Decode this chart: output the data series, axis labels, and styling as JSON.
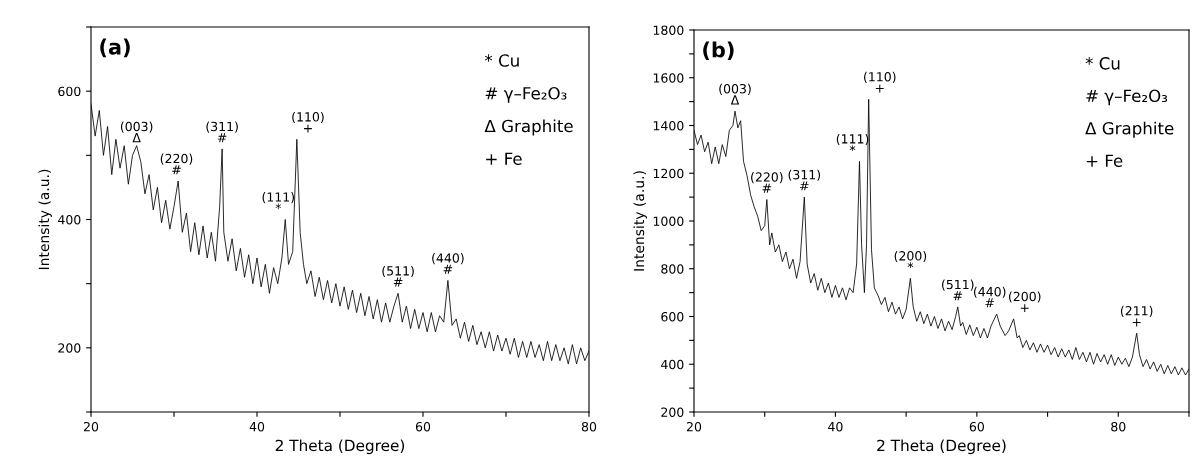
{
  "chart_data": [
    {
      "type": "line",
      "title": "(a)",
      "xlabel": "2 Theta (Degree)",
      "ylabel": "Intensity (a.u.)",
      "xlim": [
        20,
        80
      ],
      "ylim": [
        100,
        700
      ],
      "xticks": [
        20,
        {
          "value": 30,
          "label": null
        },
        40,
        {
          "value": 50,
          "label": null
        },
        60,
        {
          "value": 70,
          "label": null
        },
        80
      ],
      "yticks": [
        {
          "value": 100,
          "label": null
        },
        200,
        {
          "value": 300,
          "label": null
        },
        400,
        {
          "value": 500,
          "label": null
        },
        600,
        {
          "value": 700,
          "label": null
        }
      ],
      "grid": false,
      "legend": false,
      "marker": "none",
      "line_style": "solid",
      "series": [
        {
          "color": "#000000",
          "x": [
            20,
            20.5,
            21,
            21.5,
            22,
            22.5,
            23,
            23.5,
            24,
            24.5,
            25,
            25.5,
            26,
            26.5,
            27,
            27.5,
            28,
            28.5,
            29,
            29.5,
            30,
            30.5,
            31,
            31.5,
            32,
            32.5,
            33,
            33.5,
            34,
            34.5,
            35,
            35.5,
            35.8,
            36,
            36.5,
            37,
            37.5,
            38,
            38.5,
            39,
            39.5,
            40,
            40.5,
            41,
            41.5,
            42,
            42.5,
            43,
            43.4,
            43.8,
            44.3,
            44.8,
            45.2,
            45.6,
            46,
            46.5,
            47,
            47.5,
            48,
            48.5,
            49,
            49.5,
            50,
            50.5,
            51,
            51.5,
            52,
            52.5,
            53,
            53.5,
            54,
            54.5,
            55,
            55.5,
            56,
            56.5,
            57,
            57.5,
            58,
            58.5,
            59,
            59.5,
            60,
            60.5,
            61,
            61.5,
            62,
            62.5,
            63,
            63.5,
            64,
            64.5,
            65,
            65.5,
            66,
            66.5,
            67,
            67.5,
            68,
            68.5,
            69,
            69.5,
            70,
            70.5,
            71,
            71.5,
            72,
            72.5,
            73,
            73.5,
            74,
            74.5,
            75,
            75.5,
            76,
            76.5,
            77,
            77.5,
            78,
            78.5,
            79,
            79.5,
            80
          ],
          "values": [
            580,
            530,
            570,
            500,
            545,
            470,
            525,
            480,
            515,
            455,
            500,
            515,
            490,
            440,
            470,
            415,
            450,
            395,
            430,
            385,
            420,
            460,
            380,
            410,
            350,
            395,
            345,
            390,
            340,
            380,
            335,
            420,
            510,
            380,
            335,
            370,
            320,
            355,
            310,
            345,
            300,
            340,
            295,
            330,
            285,
            325,
            300,
            340,
            400,
            330,
            350,
            525,
            380,
            330,
            300,
            320,
            280,
            310,
            275,
            305,
            270,
            300,
            265,
            295,
            260,
            290,
            255,
            285,
            250,
            280,
            245,
            275,
            240,
            270,
            240,
            265,
            285,
            240,
            265,
            230,
            260,
            230,
            255,
            225,
            255,
            225,
            250,
            240,
            305,
            235,
            245,
            215,
            240,
            210,
            235,
            205,
            225,
            200,
            225,
            195,
            220,
            195,
            215,
            190,
            215,
            185,
            210,
            185,
            210,
            185,
            205,
            180,
            210,
            180,
            205,
            180,
            200,
            175,
            205,
            175,
            200,
            180,
            195
          ]
        }
      ],
      "annotations": [
        "* Cu",
        "# γ–Fe₂O₃",
        "Δ Graphite",
        "+ Fe",
        {
          "text": "(003)\nΔ",
          "x": 25.5,
          "y": 510
        },
        {
          "text": "(220)\n#",
          "x": 30.3,
          "y": 460
        },
        {
          "text": "(311)\n#",
          "x": 35.8,
          "y": 510
        },
        {
          "text": "(111)\n*",
          "x": 43.4,
          "y": 400
        },
        {
          "text": "(110)\n+",
          "x": 44.8,
          "y": 525
        },
        {
          "text": "(511)\n#",
          "x": 57,
          "y": 285
        },
        {
          "text": "(440)\n#",
          "x": 63,
          "y": 305
        }
      ]
    },
    {
      "type": "line",
      "title": "(b)",
      "xlabel": "2 Theta (Degree)",
      "ylabel": "Intensity (a.u.)",
      "xlim": [
        20,
        90
      ],
      "ylim": [
        200,
        1800
      ],
      "xticks": [
        20,
        {
          "value": 30,
          "label": null
        },
        40,
        {
          "value": 50,
          "label": null
        },
        60,
        {
          "value": 70,
          "label": null
        },
        80,
        {
          "value": 90,
          "label": null
        }
      ],
      "yticks": [
        200,
        {
          "value": 300,
          "label": null
        },
        400,
        {
          "value": 500,
          "label": null
        },
        600,
        {
          "value": 700,
          "label": null
        },
        800,
        {
          "value": 900,
          "label": null
        },
        1000,
        {
          "value": 1100,
          "label": null
        },
        1200,
        {
          "value": 1300,
          "label": null
        },
        1400,
        {
          "value": 1500,
          "label": null
        },
        1600,
        {
          "value": 1700,
          "label": null
        },
        1800
      ],
      "grid": false,
      "legend": false,
      "marker": "none",
      "line_style": "solid",
      "series": [
        {
          "color": "#000000",
          "x": [
            20,
            20.5,
            21,
            21.5,
            22,
            22.5,
            23,
            23.5,
            24,
            24.5,
            25,
            25.5,
            25.8,
            26.2,
            26.6,
            27,
            27.5,
            28,
            28.5,
            29,
            29.5,
            30,
            30.3,
            30.7,
            31,
            31.5,
            32,
            32.5,
            33,
            33.5,
            34,
            34.5,
            35,
            35.6,
            36,
            36.5,
            37,
            37.5,
            38,
            38.5,
            39,
            39.5,
            40,
            40.5,
            41,
            41.5,
            42,
            42.5,
            43,
            43.4,
            43.7,
            44.1,
            44.4,
            44.7,
            45.1,
            45.5,
            46,
            46.5,
            47,
            47.5,
            48,
            48.5,
            49,
            49.5,
            50,
            50.6,
            51,
            51.5,
            52,
            52.5,
            53,
            53.5,
            54,
            54.5,
            55,
            55.5,
            56,
            56.5,
            57,
            57.3,
            57.7,
            58,
            58.5,
            59,
            59.5,
            60,
            60.5,
            61,
            61.5,
            62,
            62.8,
            63.3,
            64,
            64.5,
            65.2,
            65.7,
            66,
            66.5,
            67,
            67.5,
            68,
            68.5,
            69,
            69.5,
            70,
            70.5,
            71,
            71.5,
            72,
            72.5,
            73,
            73.5,
            74,
            74.5,
            75,
            75.5,
            76,
            76.5,
            77,
            77.5,
            78,
            78.5,
            79,
            79.5,
            80,
            80.5,
            81,
            81.5,
            82,
            82.6,
            83,
            83.5,
            84,
            84.5,
            85,
            85.5,
            86,
            86.5,
            87,
            87.5,
            88,
            88.5,
            89,
            89.5,
            90
          ],
          "values": [
            1380,
            1320,
            1360,
            1290,
            1330,
            1240,
            1310,
            1240,
            1320,
            1270,
            1380,
            1400,
            1460,
            1390,
            1420,
            1250,
            1190,
            1110,
            1060,
            1020,
            960,
            980,
            1090,
            900,
            950,
            870,
            900,
            830,
            870,
            800,
            840,
            760,
            830,
            1100,
            820,
            740,
            780,
            710,
            760,
            700,
            740,
            680,
            730,
            680,
            720,
            670,
            720,
            700,
            820,
            1250,
            900,
            700,
            900,
            1510,
            880,
            720,
            690,
            650,
            680,
            620,
            660,
            610,
            640,
            590,
            630,
            760,
            640,
            580,
            620,
            570,
            610,
            560,
            600,
            550,
            590,
            540,
            580,
            545,
            600,
            640,
            560,
            575,
            525,
            565,
            520,
            555,
            510,
            550,
            510,
            560,
            610,
            560,
            520,
            540,
            590,
            510,
            520,
            470,
            500,
            460,
            490,
            450,
            485,
            450,
            480,
            440,
            470,
            430,
            465,
            430,
            460,
            420,
            470,
            420,
            450,
            410,
            450,
            400,
            445,
            410,
            440,
            400,
            440,
            395,
            430,
            400,
            425,
            390,
            430,
            530,
            440,
            390,
            420,
            380,
            410,
            370,
            400,
            360,
            395,
            360,
            390,
            355,
            385,
            355,
            380
          ]
        }
      ],
      "annotations": [
        "* Cu",
        "# γ–Fe₂O₃",
        "Δ Graphite",
        "+ Fe",
        {
          "text": "(003)\nΔ",
          "x": 25.8,
          "y": 1460
        },
        {
          "text": "(220)\n#",
          "x": 30.3,
          "y": 1090
        },
        {
          "text": "(311)\n#",
          "x": 35.6,
          "y": 1100
        },
        {
          "text": "(111)\n*",
          "x": 43.4,
          "y": 1250
        },
        {
          "text": "(110)\n+",
          "x": 44.7,
          "y": 1510
        },
        {
          "text": "(200)\n*",
          "x": 50.6,
          "y": 760
        },
        {
          "text": "(511)\n#",
          "x": 57.3,
          "y": 640
        },
        {
          "text": "(440)\n#",
          "x": 62.8,
          "y": 610
        },
        {
          "text": "(200)\n+",
          "x": 65.2,
          "y": 590
        },
        {
          "text": "(211)\n+",
          "x": 82.6,
          "y": 530
        }
      ]
    }
  ]
}
